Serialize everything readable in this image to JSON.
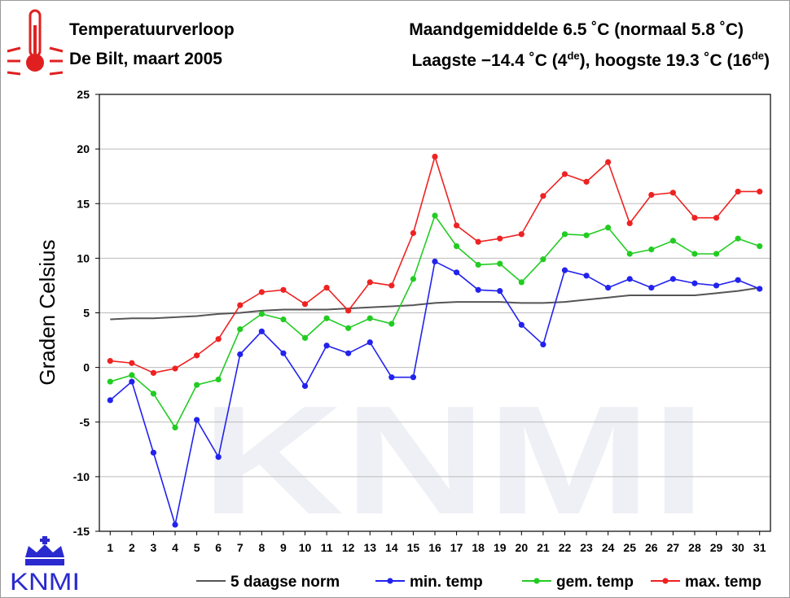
{
  "header": {
    "title": "Temperatuurverloop",
    "subtitle": "De Bilt, maart 2005",
    "month_avg": "Maandgemiddelde 6.5 ˚C (normaal 5.8 ˚C)",
    "extremes": {
      "low_prefix": "Laagste −14.4 ˚C (4",
      "low_sup": "de",
      "mid": "), hoogste 19.3 ˚C (16",
      "high_sup": "de",
      "suffix": ")"
    }
  },
  "logo": {
    "text": "KNMI",
    "icon": "crown-icon"
  },
  "watermark": {
    "text": "KNMI"
  },
  "colors": {
    "min": "#2222ee",
    "gem": "#22cc22",
    "max": "#ee2222",
    "norm": "#555555",
    "grid": "#bbbbbb",
    "thermo": "#e02020",
    "logo": "#2a2ad0"
  },
  "chart_data": {
    "type": "line",
    "title": "",
    "xlabel": "",
    "ylabel": "Graden Celsius",
    "x": [
      1,
      2,
      3,
      4,
      5,
      6,
      7,
      8,
      9,
      10,
      11,
      12,
      13,
      14,
      15,
      16,
      17,
      18,
      19,
      20,
      21,
      22,
      23,
      24,
      25,
      26,
      27,
      28,
      29,
      30,
      31
    ],
    "xlim": [
      0.5,
      31.5
    ],
    "ylim": [
      -15,
      25
    ],
    "yticks": [
      -15,
      -10,
      -5,
      0,
      5,
      10,
      15,
      20,
      25
    ],
    "grid": true,
    "legend_position": "bottom",
    "series": [
      {
        "name": "5 daagse norm",
        "key": "norm",
        "markers": false,
        "values": [
          4.4,
          4.5,
          4.5,
          4.6,
          4.7,
          4.9,
          5.0,
          5.2,
          5.3,
          5.3,
          5.3,
          5.4,
          5.5,
          5.6,
          5.7,
          5.9,
          6.0,
          6.0,
          6.0,
          5.9,
          5.9,
          6.0,
          6.2,
          6.4,
          6.6,
          6.6,
          6.6,
          6.6,
          6.8,
          7.0,
          7.3
        ]
      },
      {
        "name": "min. temp",
        "key": "min",
        "markers": true,
        "values": [
          -3.0,
          -1.3,
          -7.8,
          -14.4,
          -4.8,
          -8.2,
          1.2,
          3.3,
          1.3,
          -1.7,
          2.0,
          1.3,
          2.3,
          -0.9,
          -0.9,
          9.7,
          8.7,
          7.1,
          7.0,
          3.9,
          2.1,
          8.9,
          8.4,
          7.3,
          8.1,
          7.3,
          8.1,
          7.7,
          7.5,
          8.0,
          7.2
        ]
      },
      {
        "name": "gem. temp",
        "key": "gem",
        "markers": true,
        "values": [
          -1.3,
          -0.7,
          -2.4,
          -5.5,
          -1.6,
          -1.1,
          3.5,
          4.9,
          4.4,
          2.7,
          4.5,
          3.6,
          4.5,
          4.0,
          8.1,
          13.9,
          11.1,
          9.4,
          9.5,
          7.8,
          9.9,
          12.2,
          12.1,
          12.8,
          10.4,
          10.8,
          11.6,
          10.4,
          10.4,
          11.8,
          11.1
        ]
      },
      {
        "name": "max. temp",
        "key": "max",
        "markers": true,
        "values": [
          0.6,
          0.4,
          -0.5,
          -0.1,
          1.1,
          2.6,
          5.7,
          6.9,
          7.1,
          5.8,
          7.3,
          5.2,
          7.8,
          7.5,
          12.3,
          19.3,
          13.0,
          11.5,
          11.8,
          12.2,
          15.7,
          17.7,
          17.0,
          18.8,
          13.2,
          15.8,
          16.0,
          13.7,
          13.7,
          16.1,
          16.1
        ]
      }
    ]
  }
}
